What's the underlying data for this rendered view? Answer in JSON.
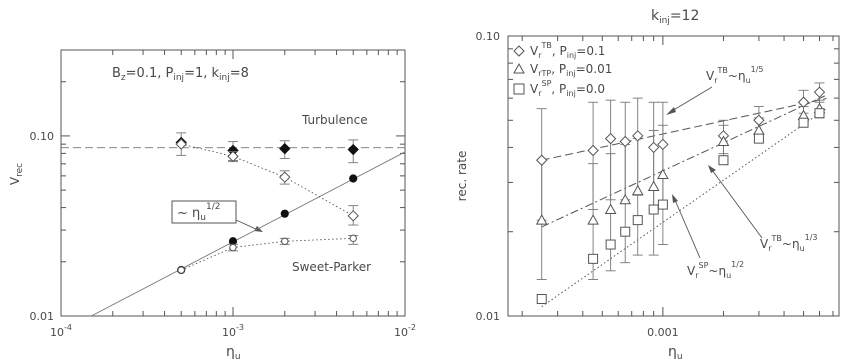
{
  "chart_data": [
    {
      "type": "scatter",
      "title": "",
      "xlabel": "η",
      "xlabel_sub": "u",
      "ylabel": "V",
      "ylabel_sub": "rec",
      "xscale": "log",
      "yscale": "log",
      "xlim": [
        0.0001,
        0.01
      ],
      "ylim": [
        0.01,
        0.3
      ],
      "xticks": [
        {
          "value": 0.0001,
          "base": "10",
          "exp": "-4"
        },
        {
          "value": 0.001,
          "base": "10",
          "exp": "-3"
        },
        {
          "value": 0.01,
          "base": "10",
          "exp": "-2"
        }
      ],
      "yticks": [
        {
          "value": 0.01,
          "label": "0.01"
        },
        {
          "value": 0.1,
          "label": "0.10"
        }
      ],
      "params_label": "B_z=0.1, P_inj=1, k_inj=8",
      "params": [
        {
          "main": "B",
          "sub": "z",
          "rest": "=0.1, "
        },
        {
          "main": "P",
          "sub": "inj",
          "rest": "=1, "
        },
        {
          "main": "k",
          "sub": "inj",
          "rest": "=8"
        }
      ],
      "annotations": {
        "turbulence": "Turbulence",
        "sweet_parker": "Sweet-Parker",
        "scaling_prefix": "~ η",
        "scaling_sub": "u",
        "scaling_sup": "1/2"
      },
      "series": [
        {
          "marker": "filled-diamond",
          "connector": "none",
          "x": [
            0.0005,
            0.001,
            0.002,
            0.005
          ],
          "y": [
            0.092,
            0.083,
            0.085,
            0.084
          ],
          "err_low": [
            0.078,
            0.073,
            0.075,
            0.071
          ],
          "err_high": [
            0.104,
            0.093,
            0.094,
            0.095
          ]
        },
        {
          "marker": "open-diamond",
          "connector": "dotted",
          "x": [
            0.0005,
            0.001,
            0.002,
            0.005
          ],
          "y": [
            0.09,
            0.077,
            0.059,
            0.036
          ],
          "err_low": [
            0.09,
            0.072,
            0.054,
            0.032
          ],
          "err_high": [
            0.09,
            0.082,
            0.064,
            0.041
          ]
        },
        {
          "marker": "filled-circle",
          "connector": "none",
          "x": [
            0.0005,
            0.001,
            0.002,
            0.005
          ],
          "y": [
            0.018,
            0.026,
            0.037,
            0.058
          ]
        },
        {
          "marker": "open-circle",
          "connector": "dotted",
          "x": [
            0.0005,
            0.001,
            0.002,
            0.005
          ],
          "y": [
            0.018,
            0.024,
            0.026,
            0.027
          ],
          "err_low": [
            0.018,
            0.023,
            0.025,
            0.025
          ],
          "err_high": [
            0.018,
            0.025,
            0.027,
            0.028
          ]
        }
      ],
      "reference_lines": [
        {
          "style": "dashed",
          "y": 0.086
        },
        {
          "style": "solid",
          "points": [
            [
              0.00015,
              0.01
            ],
            [
              0.01,
              0.0815
            ]
          ]
        }
      ]
    },
    {
      "type": "scatter",
      "title": "k_inj=12",
      "title_main": "k",
      "title_sub": "inj",
      "title_rest": "=12",
      "xlabel": "η",
      "xlabel_sub": "u",
      "ylabel": "rec. rate",
      "xscale": "log",
      "yscale": "log",
      "xlim": [
        0.00017,
        0.0075
      ],
      "ylim": [
        0.01,
        0.1
      ],
      "xticks": [
        {
          "value": 0.001,
          "label": "0.001"
        }
      ],
      "yticks": [
        {
          "value": 0.01,
          "label": "0.01"
        },
        {
          "value": 0.1,
          "label": "0.10"
        }
      ],
      "legend": [
        {
          "marker": "open-diamond",
          "main": "V",
          "sub": "r",
          "sup": "TB",
          "rest": ", P",
          "rest_sub": "inj",
          "tail": "=0.1"
        },
        {
          "marker": "open-triangle",
          "main": "V",
          "sub": "rTP",
          "sup": "",
          "rest": ", P",
          "rest_sub": "inj",
          "tail": "=0.01"
        },
        {
          "marker": "open-square",
          "main": "V",
          "sub": "r",
          "sup": "SP",
          "rest": ", P",
          "rest_sub": "inj",
          "tail": "=0.0"
        }
      ],
      "annotations": [
        {
          "main": "V",
          "sub": "r",
          "sup": "TB",
          "mid": "~η",
          "mid_sub": "u",
          "exp": "1/5"
        },
        {
          "main": "V",
          "sub": "r",
          "sup": "TB",
          "mid": "~η",
          "mid_sub": "u",
          "exp": "1/3"
        },
        {
          "main": "V",
          "sub": "r",
          "sup": "SP",
          "mid": "~η",
          "mid_sub": "u",
          "exp": "1/2"
        }
      ],
      "series": [
        {
          "name": "V_r^TB, P_inj=0.1",
          "marker": "open-diamond",
          "x": [
            0.00025,
            0.00045,
            0.00055,
            0.00065,
            0.00075,
            0.0009,
            0.001,
            0.002,
            0.003,
            0.005,
            0.006
          ],
          "y": [
            0.036,
            0.039,
            0.043,
            0.042,
            0.044,
            0.04,
            0.041,
            0.044,
            0.05,
            0.058,
            0.063
          ],
          "err_low": [
            0.022,
            0.024,
            0.026,
            0.026,
            0.027,
            0.024,
            0.025,
            0.038,
            0.045,
            0.053,
            0.058
          ],
          "err_high": [
            0.055,
            0.058,
            0.059,
            0.058,
            0.06,
            0.058,
            0.058,
            0.05,
            0.056,
            0.064,
            0.068
          ]
        },
        {
          "name": "V_rTP, P_inj=0.01",
          "marker": "open-triangle",
          "x": [
            0.00025,
            0.00045,
            0.00055,
            0.00065,
            0.00075,
            0.0009,
            0.001,
            0.002,
            0.003,
            0.005,
            0.006
          ],
          "y": [
            0.022,
            0.022,
            0.024,
            0.026,
            0.028,
            0.029,
            0.032,
            0.042,
            0.046,
            0.052,
            0.055
          ],
          "err_low": [
            0.0135,
            0.0135,
            0.0145,
            0.0155,
            0.0165,
            0.0165,
            0.018,
            0.037,
            0.042,
            0.048,
            0.051
          ],
          "err_high": [
            0.036,
            0.035,
            0.038,
            0.041,
            0.043,
            0.046,
            0.048,
            0.048,
            0.051,
            0.056,
            0.059
          ]
        },
        {
          "name": "V_r^SP, P_inj=0.0",
          "marker": "open-square",
          "x": [
            0.00025,
            0.00045,
            0.00055,
            0.00065,
            0.00075,
            0.0009,
            0.001,
            0.002,
            0.003,
            0.005,
            0.006
          ],
          "y": [
            0.0115,
            0.016,
            0.018,
            0.02,
            0.022,
            0.024,
            0.025,
            0.036,
            0.043,
            0.049,
            0.053
          ]
        }
      ],
      "reference_lines": [
        {
          "style": "dashed",
          "points": [
            [
              0.00025,
              0.036
            ],
            [
              0.0065,
              0.0598
            ]
          ]
        },
        {
          "style": "dash-dot",
          "points": [
            [
              0.00025,
              0.0208
            ],
            [
              0.0065,
              0.0615
            ]
          ]
        },
        {
          "style": "dotted",
          "points": [
            [
              0.00025,
              0.0108
            ],
            [
              0.0065,
              0.0551
            ]
          ]
        }
      ]
    }
  ]
}
